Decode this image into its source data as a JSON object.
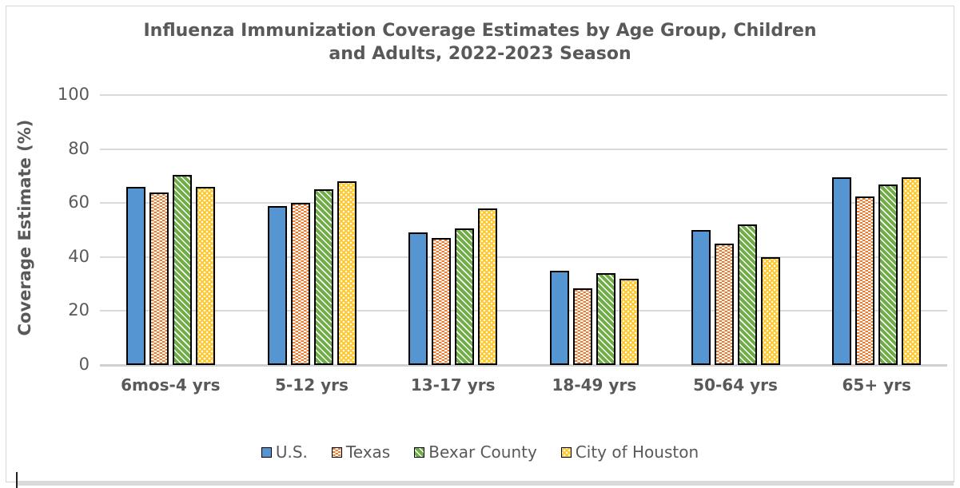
{
  "window": {
    "background": "#ffffff",
    "frame_border_color": "#d6d6d6"
  },
  "colors": {
    "text": "#595959",
    "gridline": "#d9d9d9",
    "bar_border": "#000000",
    "us_blue": "#5596D2",
    "texas_orange": "#ED7D31",
    "bexar_green": "#70AD47",
    "houston_yellow": "#FFC933"
  },
  "chart_data": {
    "type": "bar",
    "title_line1": "Influenza Immunization Coverage Estimates by Age Group, Children",
    "title_line2": "and Adults, 2022-2023 Season",
    "xlabel": "",
    "ylabel": "Coverage Estimate (%)",
    "ylim": [
      0,
      100
    ],
    "yticks": [
      0,
      20,
      40,
      60,
      80,
      100
    ],
    "grid": "horizontal-only",
    "legend_position": "bottom-center",
    "categories": [
      "6mos-4 yrs",
      "5-12 yrs",
      "13-17 yrs",
      "18-49 yrs",
      "50-64 yrs",
      "65+ yrs"
    ],
    "series": [
      {
        "name": "U.S.",
        "pattern": "solid",
        "color": "#5596D2",
        "values": [
          66,
          59,
          49,
          35,
          50,
          69.5
        ]
      },
      {
        "name": "Texas",
        "pattern": "white-dashes",
        "color": "#ED7D31",
        "values": [
          64,
          60,
          47,
          28.5,
          45,
          62.5
        ]
      },
      {
        "name": "Bexar County",
        "pattern": "diagonal-stripes",
        "color": "#70AD47",
        "values": [
          70.5,
          65,
          50.5,
          34,
          52,
          67
        ]
      },
      {
        "name": "City of Houston",
        "pattern": "white-dots",
        "color": "#FFC933",
        "values": [
          66,
          68,
          58,
          32,
          40,
          69.5
        ]
      }
    ]
  }
}
